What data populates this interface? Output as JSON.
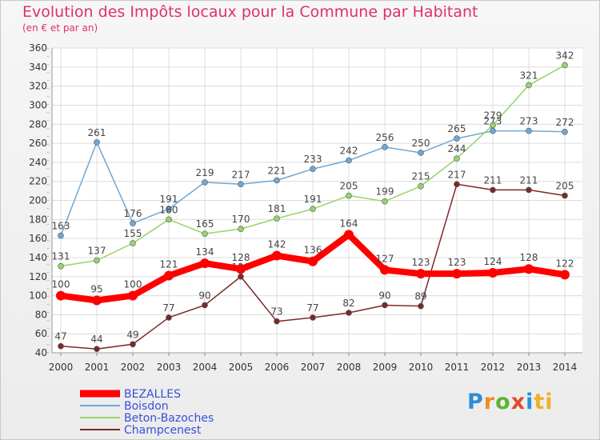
{
  "header": {
    "title": "Evolution des Impôts locaux pour la Commune par Habitant",
    "subtitle": "(en € et par an)"
  },
  "logo": {
    "text": "Proxiti",
    "letters": [
      "P",
      "r",
      "o",
      "x",
      "i",
      "ti"
    ]
  },
  "chart_data": {
    "type": "line",
    "title": "Evolution des Impôts locaux pour la Commune par Habitant",
    "subtitle": "(en € et par an)",
    "xlabel": "",
    "ylabel": "",
    "x": [
      "2000",
      "2001",
      "2002",
      "2003",
      "2004",
      "2005",
      "2006",
      "2007",
      "2008",
      "2009",
      "2010",
      "2011",
      "2012",
      "2013",
      "2014"
    ],
    "ylim": [
      40,
      360
    ],
    "yticks": [
      40,
      60,
      80,
      100,
      120,
      140,
      160,
      180,
      200,
      220,
      240,
      260,
      280,
      300,
      320,
      340,
      360
    ],
    "grid": true,
    "legend_position": "bottom-left",
    "series": [
      {
        "name": "BEZALLES",
        "color": "#ff0000",
        "emphasis": true,
        "values": [
          100,
          95,
          100,
          121,
          134,
          128,
          142,
          136,
          164,
          127,
          123,
          123,
          124,
          128,
          122
        ]
      },
      {
        "name": "Boisdon",
        "color": "#6fa8d6",
        "values": [
          163,
          261,
          176,
          191,
          219,
          217,
          221,
          233,
          242,
          256,
          250,
          265,
          273,
          273,
          272
        ]
      },
      {
        "name": "Beton-Bazoches",
        "color": "#95d46a",
        "values": [
          131,
          137,
          155,
          180,
          165,
          170,
          181,
          191,
          205,
          199,
          215,
          244,
          279,
          321,
          342
        ]
      },
      {
        "name": "Champcenest",
        "color": "#7a2a2a",
        "values": [
          47,
          44,
          49,
          77,
          90,
          120,
          73,
          77,
          82,
          90,
          89,
          217,
          211,
          211,
          205
        ]
      }
    ]
  }
}
